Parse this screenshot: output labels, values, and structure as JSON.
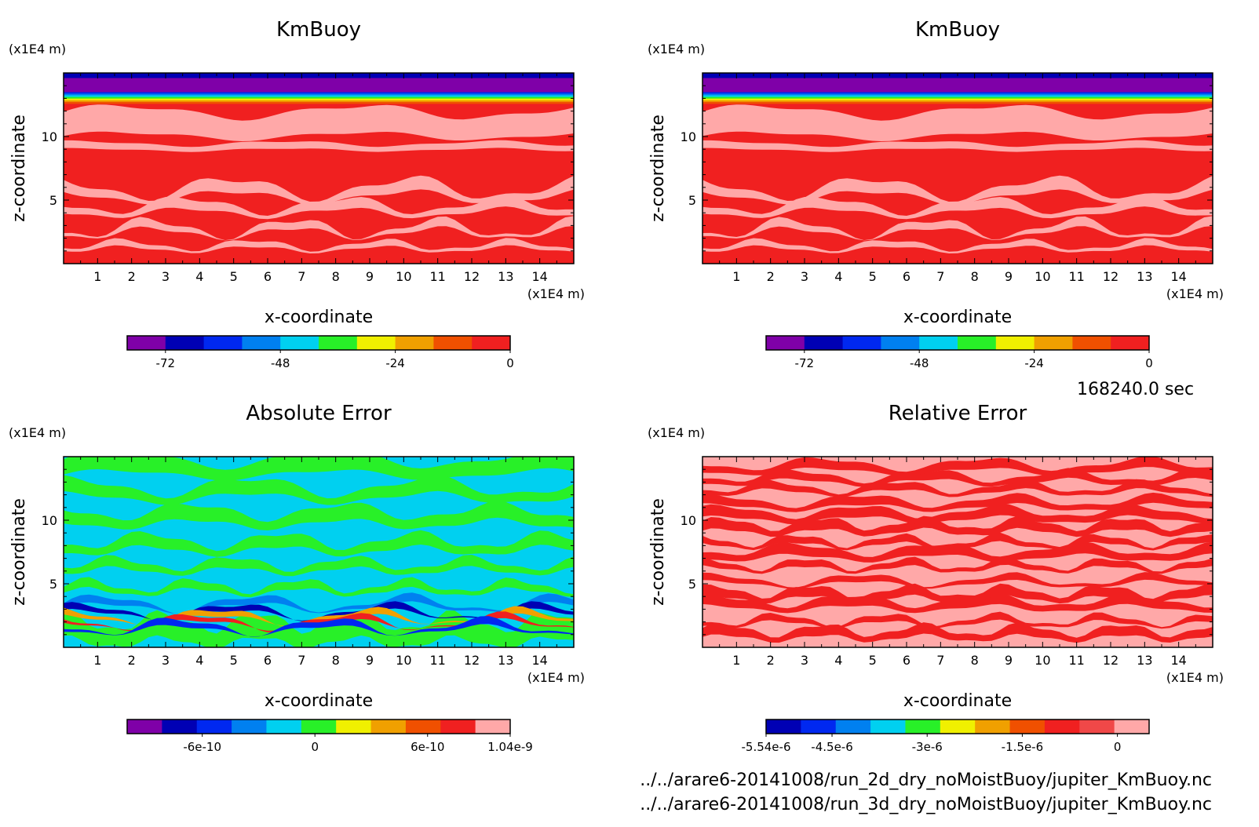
{
  "chart_data": [
    {
      "type": "heatmap",
      "title": "KmBuoy",
      "xlabel": "x-coordinate",
      "ylabel": "z-coordinate",
      "x_unit": "(x1E4 m)",
      "y_unit": "(x1E4 m)",
      "x_ticks": [
        "1",
        "2",
        "3",
        "4",
        "5",
        "6",
        "7",
        "8",
        "9",
        "10",
        "11",
        "12",
        "13",
        "14"
      ],
      "y_ticks": [
        "5",
        "10"
      ],
      "xlim": [
        0,
        15
      ],
      "ylim": [
        0,
        15
      ],
      "colorbar": {
        "colors": [
          "#7f00a8",
          "#0000b4",
          "#0028f0",
          "#0080f0",
          "#00d0f0",
          "#28f028",
          "#f0f000",
          "#f0a000",
          "#f05000",
          "#f02020"
        ],
        "tick_labels": [
          "-72",
          "-48",
          "-24",
          "0"
        ],
        "tick_values": [
          -72,
          -48,
          -24,
          0
        ],
        "range": [
          -80,
          0
        ]
      },
      "bands": [
        {
          "z": [
            14.6,
            15.0
          ],
          "color": "#0000b4"
        },
        {
          "z": [
            13.5,
            14.6
          ],
          "color": "#7f00a8"
        },
        {
          "z": [
            12.6,
            13.5
          ],
          "color": "multicolor-gradient"
        },
        {
          "z": [
            0,
            12.6
          ],
          "color": "#f02020",
          "note": "mixed with #ffa8a8 patches"
        }
      ]
    },
    {
      "type": "heatmap",
      "title": "KmBuoy",
      "xlabel": "x-coordinate",
      "ylabel": "z-coordinate",
      "x_unit": "(x1E4 m)",
      "y_unit": "(x1E4 m)",
      "x_ticks": [
        "1",
        "2",
        "3",
        "4",
        "5",
        "6",
        "7",
        "8",
        "9",
        "10",
        "11",
        "12",
        "13",
        "14"
      ],
      "y_ticks": [
        "5",
        "10"
      ],
      "xlim": [
        0,
        15
      ],
      "ylim": [
        0,
        15
      ],
      "colorbar": {
        "colors": [
          "#7f00a8",
          "#0000b4",
          "#0028f0",
          "#0080f0",
          "#00d0f0",
          "#28f028",
          "#f0f000",
          "#f0a000",
          "#f05000",
          "#f02020"
        ],
        "tick_labels": [
          "-72",
          "-48",
          "-24",
          "0"
        ],
        "tick_values": [
          -72,
          -48,
          -24,
          0
        ],
        "range": [
          -80,
          0
        ]
      }
    },
    {
      "type": "heatmap",
      "title": "Absolute Error",
      "xlabel": "x-coordinate",
      "ylabel": "z-coordinate",
      "x_unit": "(x1E4 m)",
      "y_unit": "(x1E4 m)",
      "x_ticks": [
        "1",
        "2",
        "3",
        "4",
        "5",
        "6",
        "7",
        "8",
        "9",
        "10",
        "11",
        "12",
        "13",
        "14"
      ],
      "y_ticks": [
        "5",
        "10"
      ],
      "xlim": [
        0,
        15
      ],
      "ylim": [
        0,
        15
      ],
      "colorbar": {
        "colors": [
          "#7f00a8",
          "#0000b4",
          "#0028f0",
          "#0080f0",
          "#00d0f0",
          "#28f028",
          "#f0f000",
          "#f0a000",
          "#f05000",
          "#f02020",
          "#ffa8a8"
        ],
        "tick_labels": [
          "-6e-10",
          "0",
          "6e-10",
          "1.04e-9"
        ],
        "tick_values": [
          -6e-10,
          0,
          6e-10,
          1.04e-09
        ],
        "range": [
          -1e-09,
          1.04e-09
        ]
      }
    },
    {
      "type": "heatmap",
      "title": "Relative Error",
      "xlabel": "x-coordinate",
      "ylabel": "z-coordinate",
      "x_unit": "(x1E4 m)",
      "y_unit": "(x1E4 m)",
      "x_ticks": [
        "1",
        "2",
        "3",
        "4",
        "5",
        "6",
        "7",
        "8",
        "9",
        "10",
        "11",
        "12",
        "13",
        "14"
      ],
      "y_ticks": [
        "5",
        "10"
      ],
      "xlim": [
        0,
        15
      ],
      "ylim": [
        0,
        15
      ],
      "colorbar": {
        "colors": [
          "#0000b4",
          "#0028f0",
          "#0080f0",
          "#00d0f0",
          "#28f028",
          "#f0f000",
          "#f0a000",
          "#f05000",
          "#f02020",
          "#f04848",
          "#ffa8a8"
        ],
        "tick_labels": [
          "-5.54e-6",
          "-4.5e-6",
          "-3e-6",
          "-1.5e-6",
          "0"
        ],
        "tick_values": [
          -5.54e-06,
          -4.5e-06,
          -3e-06,
          -1.5e-06,
          0
        ],
        "range": [
          -5.54e-06,
          5e-07
        ]
      }
    }
  ],
  "time_label": "168240.0 sec",
  "file_paths": [
    "../../arare6-20141008/run_2d_dry_noMoistBuoy/jupiter_KmBuoy.nc",
    "../../arare6-20141008/run_3d_dry_noMoistBuoy/jupiter_KmBuoy.nc"
  ],
  "colors": {
    "red": "#f02020",
    "pink": "#ffa8a8",
    "green": "#28f028",
    "cyan": "#00d0f0"
  }
}
